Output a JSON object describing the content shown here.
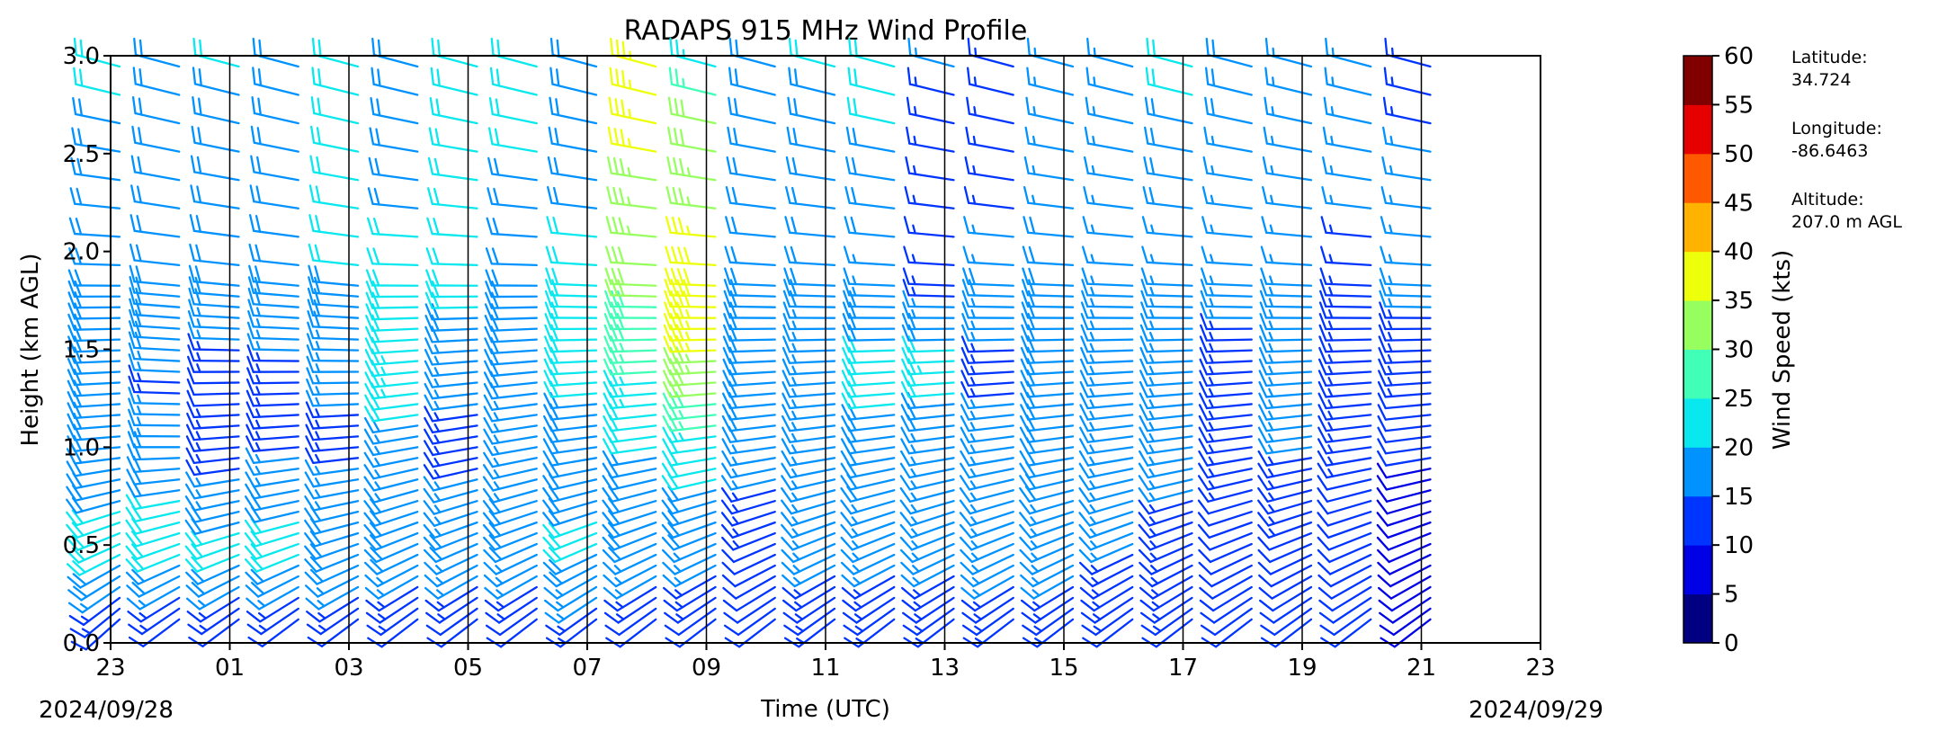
{
  "chart_data": {
    "type": "wind_barb_profile",
    "title": "RADAPS 915 MHz Wind Profile",
    "xlabel": "Time (UTC)",
    "ylabel": "Height (km AGL)",
    "ylim": [
      0.0,
      3.0
    ],
    "y_ticks": [
      "0.0",
      "0.5",
      "1.0",
      "1.5",
      "2.0",
      "2.5",
      "3.0"
    ],
    "x_ticks": [
      "23",
      "01",
      "03",
      "05",
      "07",
      "09",
      "11",
      "13",
      "15",
      "17",
      "19",
      "21",
      "23"
    ],
    "start_date": "2024/09/28",
    "end_date": "2024/09/29",
    "colorbar": {
      "label": "Wind Speed (kts)",
      "ticks": [
        "0",
        "5",
        "10",
        "15",
        "20",
        "25",
        "30",
        "35",
        "40",
        "45",
        "50",
        "55",
        "60"
      ],
      "colors": [
        "#000080",
        "#0000e6",
        "#0035ff",
        "#0092ff",
        "#08e8ee",
        "#41ffb6",
        "#96ff5f",
        "#edff0a",
        "#ffb200",
        "#ff5900",
        "#e60000",
        "#800000"
      ]
    },
    "columns": [
      {
        "time": "23:20",
        "profile": [
          [
            0.05,
            10
          ],
          [
            0.5,
            22
          ],
          [
            0.9,
            18
          ],
          [
            1.4,
            18
          ],
          [
            1.8,
            18
          ],
          [
            2.2,
            18
          ],
          [
            2.9,
            21
          ]
        ],
        "dir": [
          [
            0.05,
            225
          ],
          [
            0.6,
            250
          ],
          [
            1.0,
            265
          ],
          [
            1.8,
            270
          ],
          [
            2.9,
            285
          ]
        ]
      },
      {
        "time": "00:20",
        "profile": [
          [
            0.05,
            10
          ],
          [
            0.5,
            22
          ],
          [
            1.0,
            18
          ],
          [
            1.3,
            14
          ],
          [
            1.6,
            20
          ],
          [
            2.2,
            18
          ],
          [
            2.9,
            18
          ]
        ],
        "dir": [
          [
            0.05,
            230
          ],
          [
            0.6,
            255
          ],
          [
            1.0,
            270
          ],
          [
            1.8,
            275
          ],
          [
            2.9,
            285
          ]
        ]
      },
      {
        "time": "01:20",
        "profile": [
          [
            0.05,
            10
          ],
          [
            0.5,
            22
          ],
          [
            0.9,
            14
          ],
          [
            1.3,
            12
          ],
          [
            1.7,
            18
          ],
          [
            2.2,
            18
          ],
          [
            2.9,
            20
          ]
        ],
        "dir": [
          [
            0.05,
            230
          ],
          [
            0.6,
            255
          ],
          [
            1.0,
            265
          ],
          [
            1.8,
            275
          ],
          [
            2.9,
            285
          ]
        ]
      },
      {
        "time": "02:20",
        "profile": [
          [
            0.05,
            10
          ],
          [
            0.5,
            22
          ],
          [
            1.0,
            15
          ],
          [
            1.3,
            13
          ],
          [
            1.7,
            18
          ],
          [
            2.2,
            18
          ],
          [
            2.9,
            19
          ]
        ],
        "dir": [
          [
            0.05,
            230
          ],
          [
            0.6,
            255
          ],
          [
            1.0,
            265
          ],
          [
            1.8,
            275
          ],
          [
            2.9,
            285
          ]
        ]
      },
      {
        "time": "03:20",
        "profile": [
          [
            0.05,
            10
          ],
          [
            0.5,
            20
          ],
          [
            1.0,
            14
          ],
          [
            1.5,
            17
          ],
          [
            1.9,
            20
          ],
          [
            2.3,
            22
          ],
          [
            2.9,
            22
          ]
        ],
        "dir": [
          [
            0.05,
            230
          ],
          [
            0.6,
            255
          ],
          [
            1.0,
            265
          ],
          [
            1.8,
            275
          ],
          [
            2.9,
            285
          ]
        ]
      },
      {
        "time": "04:20",
        "profile": [
          [
            0.05,
            10
          ],
          [
            0.5,
            19
          ],
          [
            1.0,
            16
          ],
          [
            1.3,
            24
          ],
          [
            1.6,
            21
          ],
          [
            2.2,
            20
          ],
          [
            2.9,
            19
          ]
        ],
        "dir": [
          [
            0.05,
            230
          ],
          [
            0.6,
            250
          ],
          [
            1.0,
            260
          ],
          [
            1.8,
            270
          ],
          [
            2.9,
            285
          ]
        ]
      },
      {
        "time": "05:20",
        "profile": [
          [
            0.05,
            10
          ],
          [
            0.5,
            18
          ],
          [
            1.0,
            14
          ],
          [
            1.4,
            16
          ],
          [
            1.7,
            20
          ],
          [
            2.2,
            20
          ],
          [
            2.9,
            21
          ]
        ],
        "dir": [
          [
            0.05,
            230
          ],
          [
            0.6,
            250
          ],
          [
            1.0,
            260
          ],
          [
            1.8,
            270
          ],
          [
            2.9,
            285
          ]
        ]
      },
      {
        "time": "06:20",
        "profile": [
          [
            0.05,
            10
          ],
          [
            0.5,
            18
          ],
          [
            1.0,
            17
          ],
          [
            1.5,
            18
          ],
          [
            1.9,
            19
          ],
          [
            2.4,
            20
          ],
          [
            2.9,
            21
          ]
        ],
        "dir": [
          [
            0.05,
            230
          ],
          [
            0.6,
            250
          ],
          [
            1.0,
            260
          ],
          [
            1.8,
            270
          ],
          [
            2.9,
            285
          ]
        ]
      },
      {
        "time": "07:20",
        "profile": [
          [
            0.05,
            11
          ],
          [
            0.5,
            21
          ],
          [
            1.0,
            18
          ],
          [
            1.5,
            22
          ],
          [
            1.9,
            21
          ],
          [
            2.4,
            19
          ],
          [
            2.9,
            19
          ]
        ],
        "dir": [
          [
            0.05,
            230
          ],
          [
            0.6,
            250
          ],
          [
            1.0,
            262
          ],
          [
            1.8,
            272
          ],
          [
            2.9,
            285
          ]
        ]
      },
      {
        "time": "08:20",
        "profile": [
          [
            0.05,
            10
          ],
          [
            0.5,
            18
          ],
          [
            1.0,
            20
          ],
          [
            1.3,
            24
          ],
          [
            1.6,
            29
          ],
          [
            2.1,
            33
          ],
          [
            2.6,
            36
          ],
          [
            2.9,
            36
          ]
        ],
        "dir": [
          [
            0.05,
            230
          ],
          [
            0.6,
            250
          ],
          [
            1.0,
            262
          ],
          [
            1.8,
            272
          ],
          [
            2.9,
            285
          ]
        ]
      },
      {
        "time": "09:20",
        "profile": [
          [
            0.05,
            10
          ],
          [
            0.5,
            17
          ],
          [
            1.0,
            22
          ],
          [
            1.4,
            34
          ],
          [
            1.8,
            39
          ],
          [
            2.3,
            34
          ],
          [
            2.7,
            31
          ],
          [
            2.9,
            23
          ]
        ],
        "dir": [
          [
            0.05,
            230
          ],
          [
            0.6,
            250
          ],
          [
            1.0,
            262
          ],
          [
            1.8,
            272
          ],
          [
            2.9,
            285
          ]
        ]
      },
      {
        "time": "10:20",
        "profile": [
          [
            0.05,
            12
          ],
          [
            0.5,
            12
          ],
          [
            0.9,
            16
          ],
          [
            1.3,
            20
          ],
          [
            1.7,
            18
          ],
          [
            2.2,
            18
          ],
          [
            2.9,
            19
          ]
        ],
        "dir": [
          [
            0.05,
            230
          ],
          [
            0.6,
            250
          ],
          [
            1.0,
            262
          ],
          [
            1.8,
            272
          ],
          [
            2.9,
            285
          ]
        ]
      },
      {
        "time": "11:20",
        "profile": [
          [
            0.05,
            12
          ],
          [
            0.5,
            16
          ],
          [
            1.0,
            17
          ],
          [
            1.4,
            16
          ],
          [
            1.8,
            18
          ],
          [
            2.4,
            18
          ],
          [
            2.9,
            20
          ]
        ],
        "dir": [
          [
            0.05,
            230
          ],
          [
            0.6,
            250
          ],
          [
            1.0,
            262
          ],
          [
            1.8,
            272
          ],
          [
            2.9,
            285
          ]
        ]
      },
      {
        "time": "12:20",
        "profile": [
          [
            0.05,
            12
          ],
          [
            0.5,
            16
          ],
          [
            1.0,
            19
          ],
          [
            1.4,
            21
          ],
          [
            1.8,
            17
          ],
          [
            2.4,
            19
          ],
          [
            2.9,
            21
          ]
        ],
        "dir": [
          [
            0.05,
            230
          ],
          [
            0.6,
            250
          ],
          [
            1.0,
            262
          ],
          [
            1.8,
            272
          ],
          [
            2.9,
            285
          ]
        ]
      },
      {
        "time": "13:20",
        "profile": [
          [
            0.05,
            12
          ],
          [
            0.5,
            16
          ],
          [
            1.0,
            16
          ],
          [
            1.4,
            23
          ],
          [
            1.8,
            14
          ],
          [
            2.2,
            13
          ],
          [
            2.9,
            15
          ]
        ],
        "dir": [
          [
            0.05,
            230
          ],
          [
            0.6,
            250
          ],
          [
            1.0,
            262
          ],
          [
            1.8,
            272
          ],
          [
            2.9,
            285
          ]
        ]
      },
      {
        "time": "14:20",
        "profile": [
          [
            0.05,
            12
          ],
          [
            0.5,
            17
          ],
          [
            1.0,
            17
          ],
          [
            1.4,
            14
          ],
          [
            1.8,
            18
          ],
          [
            2.4,
            13
          ],
          [
            2.9,
            14
          ]
        ],
        "dir": [
          [
            0.05,
            230
          ],
          [
            0.6,
            250
          ],
          [
            1.0,
            262
          ],
          [
            1.8,
            272
          ],
          [
            2.9,
            285
          ]
        ]
      },
      {
        "time": "15:20",
        "profile": [
          [
            0.05,
            12
          ],
          [
            0.5,
            17
          ],
          [
            1.0,
            18
          ],
          [
            1.5,
            18
          ],
          [
            1.9,
            18
          ],
          [
            2.4,
            17
          ],
          [
            2.9,
            16
          ]
        ],
        "dir": [
          [
            0.05,
            230
          ],
          [
            0.6,
            250
          ],
          [
            1.0,
            262
          ],
          [
            1.8,
            272
          ],
          [
            2.9,
            285
          ]
        ]
      },
      {
        "time": "16:20",
        "profile": [
          [
            0.05,
            12
          ],
          [
            0.5,
            15
          ],
          [
            1.0,
            17
          ],
          [
            1.5,
            17
          ],
          [
            1.9,
            17
          ],
          [
            2.4,
            15
          ],
          [
            2.9,
            15
          ]
        ],
        "dir": [
          [
            0.05,
            230
          ],
          [
            0.6,
            250
          ],
          [
            1.0,
            262
          ],
          [
            1.8,
            272
          ],
          [
            2.9,
            285
          ]
        ]
      },
      {
        "time": "17:20",
        "profile": [
          [
            0.05,
            12
          ],
          [
            0.5,
            14
          ],
          [
            1.0,
            16
          ],
          [
            1.5,
            17
          ],
          [
            1.9,
            17
          ],
          [
            2.4,
            18
          ],
          [
            2.9,
            21
          ]
        ],
        "dir": [
          [
            0.05,
            230
          ],
          [
            0.6,
            250
          ],
          [
            1.0,
            262
          ],
          [
            1.8,
            272
          ],
          [
            2.9,
            285
          ]
        ]
      },
      {
        "time": "18:20",
        "profile": [
          [
            0.05,
            12
          ],
          [
            0.5,
            12
          ],
          [
            1.0,
            13
          ],
          [
            1.5,
            14
          ],
          [
            1.9,
            17
          ],
          [
            2.4,
            17
          ],
          [
            2.9,
            18
          ]
        ],
        "dir": [
          [
            0.05,
            230
          ],
          [
            0.6,
            250
          ],
          [
            1.0,
            262
          ],
          [
            1.8,
            272
          ],
          [
            2.9,
            285
          ]
        ]
      },
      {
        "time": "19:20",
        "profile": [
          [
            0.05,
            12
          ],
          [
            0.5,
            12
          ],
          [
            1.0,
            15
          ],
          [
            1.5,
            16
          ],
          [
            1.9,
            17
          ],
          [
            2.4,
            17
          ],
          [
            2.9,
            17
          ]
        ],
        "dir": [
          [
            0.05,
            230
          ],
          [
            0.6,
            250
          ],
          [
            1.0,
            262
          ],
          [
            1.8,
            272
          ],
          [
            2.9,
            285
          ]
        ]
      },
      {
        "time": "20:20",
        "profile": [
          [
            0.05,
            12
          ],
          [
            0.5,
            11
          ],
          [
            1.0,
            13
          ],
          [
            1.5,
            15
          ],
          [
            1.9,
            14
          ],
          [
            2.4,
            16
          ],
          [
            2.9,
            17
          ]
        ],
        "dir": [
          [
            0.05,
            230
          ],
          [
            0.6,
            250
          ],
          [
            1.0,
            262
          ],
          [
            1.8,
            272
          ],
          [
            2.9,
            285
          ]
        ]
      },
      {
        "time": "21:20",
        "profile": [
          [
            0.05,
            8
          ],
          [
            0.5,
            9
          ],
          [
            0.9,
            10
          ],
          [
            1.3,
            13
          ],
          [
            1.7,
            15
          ],
          [
            2.2,
            16
          ],
          [
            2.9,
            14
          ]
        ],
        "dir": [
          [
            0.05,
            230
          ],
          [
            0.6,
            250
          ],
          [
            1.0,
            262
          ],
          [
            1.8,
            272
          ],
          [
            2.9,
            285
          ]
        ]
      }
    ],
    "station": [
      {
        "label": "Latitude:",
        "value": "34.724"
      },
      {
        "label": "Longitude:",
        "value": "-86.6463"
      },
      {
        "label": "Altitude:",
        "value": "207.0 m AGL"
      }
    ]
  }
}
